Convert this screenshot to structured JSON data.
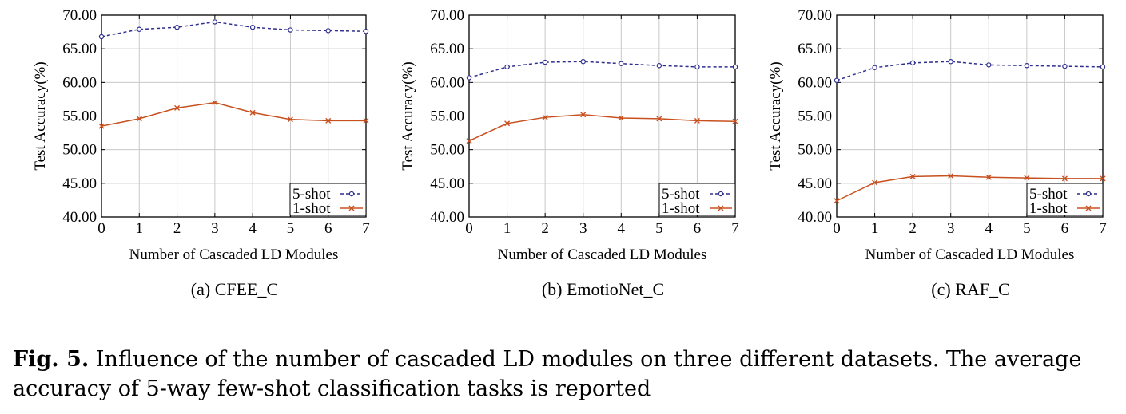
{
  "chart_data": [
    {
      "type": "line",
      "sublabel": "(a) CFEE_C",
      "xlabel": "Number of Cascaded LD Modules",
      "ylabel": "Test Accuracy(%)",
      "x": [
        0,
        1,
        2,
        3,
        4,
        5,
        6,
        7
      ],
      "ylim": [
        40,
        70
      ],
      "xlim": [
        0,
        7
      ],
      "yticks": [
        "40.00",
        "45.00",
        "50.00",
        "55.00",
        "60.00",
        "65.00",
        "70.00"
      ],
      "xticks": [
        "0",
        "1",
        "2",
        "3",
        "4",
        "5",
        "6",
        "7"
      ],
      "grid": true,
      "legend": "bottom-right",
      "series": [
        {
          "name": "5-shot",
          "values": [
            66.8,
            67.9,
            68.2,
            69.0,
            68.2,
            67.8,
            67.7,
            67.6
          ]
        },
        {
          "name": "1-shot",
          "values": [
            53.5,
            54.6,
            56.2,
            57.0,
            55.5,
            54.5,
            54.3,
            54.3
          ]
        }
      ]
    },
    {
      "type": "line",
      "sublabel": "(b) EmotioNet_C",
      "xlabel": "Number of Cascaded LD Modules",
      "ylabel": "Test Accuracy(%)",
      "x": [
        0,
        1,
        2,
        3,
        4,
        5,
        6,
        7
      ],
      "ylim": [
        40,
        70
      ],
      "xlim": [
        0,
        7
      ],
      "yticks": [
        "40.00",
        "45.00",
        "50.00",
        "55.00",
        "60.00",
        "65.00",
        "70.00"
      ],
      "xticks": [
        "0",
        "1",
        "2",
        "3",
        "4",
        "5",
        "6",
        "7"
      ],
      "grid": true,
      "legend": "bottom-right",
      "series": [
        {
          "name": "5-shot",
          "values": [
            60.7,
            62.3,
            63.0,
            63.1,
            62.8,
            62.5,
            62.3,
            62.3
          ]
        },
        {
          "name": "1-shot",
          "values": [
            51.3,
            53.9,
            54.8,
            55.2,
            54.7,
            54.6,
            54.3,
            54.2
          ]
        }
      ]
    },
    {
      "type": "line",
      "sublabel": "(c) RAF_C",
      "xlabel": "Number of Cascaded LD Modules",
      "ylabel": "Test Accuracy(%)",
      "x": [
        0,
        1,
        2,
        3,
        4,
        5,
        6,
        7
      ],
      "ylim": [
        40,
        70
      ],
      "xlim": [
        0,
        7
      ],
      "yticks": [
        "40.00",
        "45.00",
        "50.00",
        "55.00",
        "60.00",
        "65.00",
        "70.00"
      ],
      "xticks": [
        "0",
        "1",
        "2",
        "3",
        "4",
        "5",
        "6",
        "7"
      ],
      "grid": true,
      "legend": "bottom-right",
      "series": [
        {
          "name": "5-shot",
          "values": [
            60.3,
            62.2,
            62.9,
            63.1,
            62.6,
            62.5,
            62.4,
            62.3
          ]
        },
        {
          "name": "1-shot",
          "values": [
            42.4,
            45.1,
            46.0,
            46.1,
            45.9,
            45.8,
            45.7,
            45.7
          ]
        }
      ]
    }
  ],
  "colors": {
    "five_shot": "#2f2f8f",
    "one_shot": "#c8501e",
    "grid": "#c8c8c8"
  },
  "caption": {
    "lead": "Fig. 5.",
    "text": "Influence of the number of cascaded LD modules on three different datasets. The average accuracy of 5-way few-shot classification tasks is reported"
  }
}
